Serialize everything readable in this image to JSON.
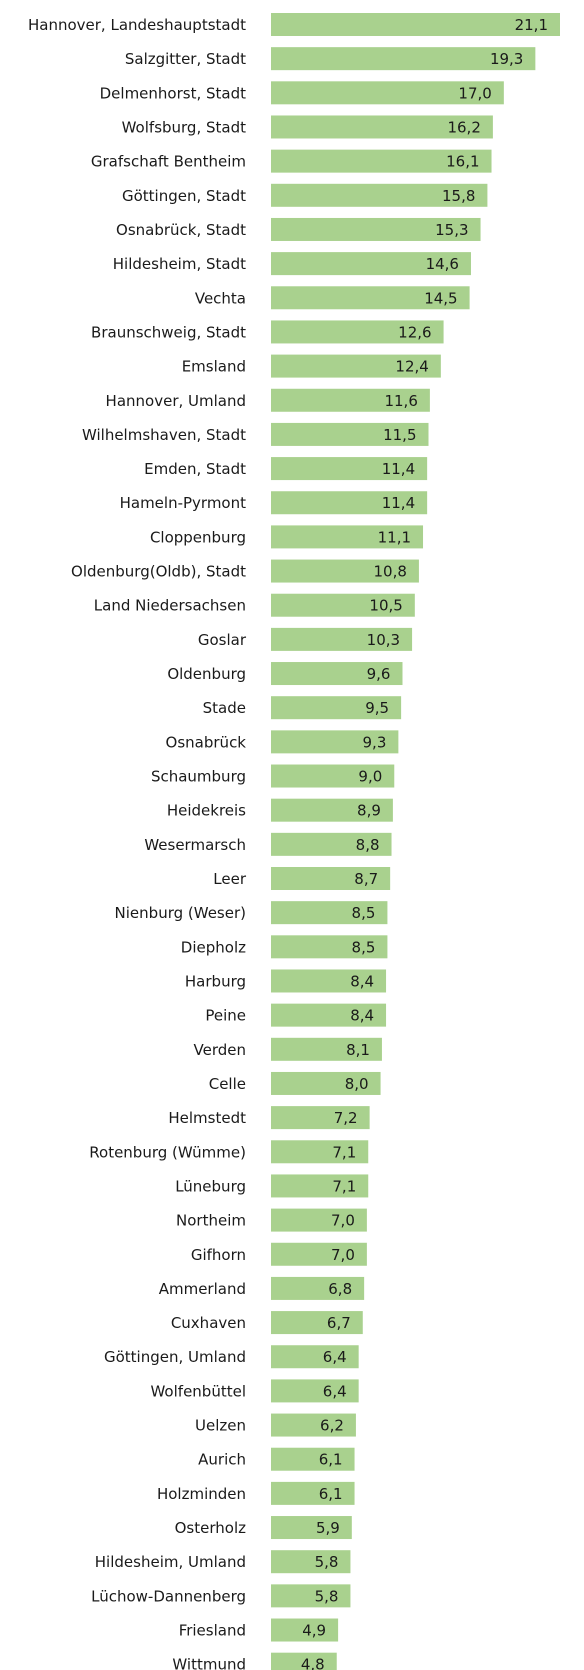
{
  "chart_data": {
    "type": "bar",
    "orientation": "horizontal",
    "categories": [
      "Hannover, Landeshauptstadt",
      "Salzgitter, Stadt",
      "Delmenhorst, Stadt",
      "Wolfsburg, Stadt",
      "Grafschaft Bentheim",
      "Göttingen, Stadt",
      "Osnabrück, Stadt",
      "Hildesheim, Stadt",
      "Vechta",
      "Braunschweig, Stadt",
      "Emsland",
      "Hannover, Umland",
      "Wilhelmshaven, Stadt",
      "Emden, Stadt",
      "Hameln-Pyrmont",
      "Cloppenburg",
      "Oldenburg(Oldb), Stadt",
      "Land Niedersachsen",
      "Goslar",
      "Oldenburg",
      "Stade",
      "Osnabrück",
      "Schaumburg",
      "Heidekreis",
      "Wesermarsch",
      "Leer",
      "Nienburg (Weser)",
      "Diepholz",
      "Harburg",
      "Peine",
      "Verden",
      "Celle",
      "Helmstedt",
      "Rotenburg (Wümme)",
      "Lüneburg",
      "Northeim",
      "Gifhorn",
      "Ammerland",
      "Cuxhaven",
      "Göttingen, Umland",
      "Wolfenbüttel",
      "Uelzen",
      "Aurich",
      "Holzminden",
      "Osterholz",
      "Hildesheim, Umland",
      "Lüchow-Dannenberg",
      "Friesland",
      "Wittmund"
    ],
    "values": [
      21.1,
      19.3,
      17.0,
      16.2,
      16.1,
      15.8,
      15.3,
      14.6,
      14.5,
      12.6,
      12.4,
      11.6,
      11.5,
      11.4,
      11.4,
      11.1,
      10.8,
      10.5,
      10.3,
      9.6,
      9.5,
      9.3,
      9.0,
      8.9,
      8.8,
      8.7,
      8.5,
      8.5,
      8.4,
      8.4,
      8.1,
      8.0,
      7.2,
      7.1,
      7.1,
      7.0,
      7.0,
      6.8,
      6.7,
      6.4,
      6.4,
      6.2,
      6.1,
      6.1,
      5.9,
      5.8,
      5.8,
      4.9,
      4.8
    ],
    "value_labels": [
      "21,1",
      "19,3",
      "17,0",
      "16,2",
      "16,1",
      "15,8",
      "15,3",
      "14,6",
      "14,5",
      "12,6",
      "12,4",
      "11,6",
      "11,5",
      "11,4",
      "11,4",
      "11,1",
      "10,8",
      "10,5",
      "10,3",
      "9,6",
      "9,5",
      "9,3",
      "9,0",
      "8,9",
      "8,8",
      "8,7",
      "8,5",
      "8,5",
      "8,4",
      "8,4",
      "8,1",
      "8,0",
      "7,2",
      "7,1",
      "7,1",
      "7,0",
      "7,0",
      "6,8",
      "6,7",
      "6,4",
      "6,4",
      "6,2",
      "6,1",
      "6,1",
      "5,9",
      "5,8",
      "5,8",
      "4,9",
      "4,8"
    ],
    "title": "",
    "xlabel": "",
    "ylabel": "",
    "xlim": [
      0,
      21.1
    ],
    "grid": false,
    "legend": "none",
    "bar_color": "#a9d18e"
  }
}
